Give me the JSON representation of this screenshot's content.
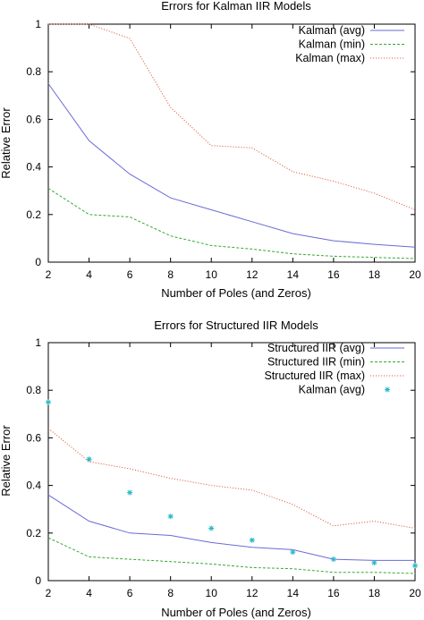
{
  "chart_data": [
    {
      "type": "line",
      "title": "Errors for Kalman IIR Models",
      "xlabel": "Number of Poles (and Zeros)",
      "ylabel": "Relative Error",
      "xlim": [
        2,
        20
      ],
      "ylim": [
        0,
        1
      ],
      "x_ticks": [
        2,
        4,
        6,
        8,
        10,
        12,
        14,
        16,
        18,
        20
      ],
      "x_tick_labels": [
        "2",
        "4",
        "6",
        "8",
        "10",
        "12",
        "14",
        "16",
        "18",
        "20"
      ],
      "y_ticks": [
        0,
        0.2,
        0.4,
        0.6,
        0.8,
        1
      ],
      "y_tick_labels": [
        "0",
        "0.2",
        "0.4",
        "0.6",
        "0.8",
        "1"
      ],
      "grid": false,
      "legend_position": "top-right",
      "x": [
        2,
        4,
        6,
        8,
        10,
        12,
        14,
        16,
        18,
        20
      ],
      "series": [
        {
          "name": "Kalman (avg)",
          "style": "solid",
          "marker": "none",
          "color": "#6a6ad8",
          "values": [
            0.75,
            0.51,
            0.37,
            0.27,
            0.22,
            0.17,
            0.12,
            0.09,
            0.075,
            0.063
          ]
        },
        {
          "name": "Kalman (min)",
          "style": "dashed",
          "marker": "none",
          "color": "#33aa33",
          "values": [
            0.31,
            0.2,
            0.19,
            0.11,
            0.07,
            0.055,
            0.035,
            0.025,
            0.02,
            0.015
          ]
        },
        {
          "name": "Kalman (max)",
          "style": "dotted",
          "marker": "none",
          "color": "#dd6644",
          "values": [
            1.0,
            1.0,
            0.94,
            0.65,
            0.49,
            0.48,
            0.38,
            0.34,
            0.29,
            0.22
          ]
        }
      ]
    },
    {
      "type": "line",
      "title": "Errors for Structured IIR Models",
      "xlabel": "Number of Poles (and Zeros)",
      "ylabel": "Relative Error",
      "xlim": [
        2,
        20
      ],
      "ylim": [
        0,
        1
      ],
      "x_ticks": [
        2,
        4,
        6,
        8,
        10,
        12,
        14,
        16,
        18,
        20
      ],
      "x_tick_labels": [
        "2",
        "4",
        "6",
        "8",
        "10",
        "12",
        "14",
        "16",
        "18",
        "20"
      ],
      "y_ticks": [
        0,
        0.2,
        0.4,
        0.6,
        0.8,
        1
      ],
      "y_tick_labels": [
        "0",
        "0.2",
        "0.4",
        "0.6",
        "0.8",
        "1"
      ],
      "grid": false,
      "legend_position": "top-right",
      "x": [
        2,
        4,
        6,
        8,
        10,
        12,
        14,
        16,
        18,
        20
      ],
      "series": [
        {
          "name": "Structured IIR (avg)",
          "style": "solid",
          "marker": "none",
          "color": "#6a6ad8",
          "values": [
            0.36,
            0.25,
            0.2,
            0.19,
            0.16,
            0.14,
            0.13,
            0.09,
            0.085,
            0.085
          ]
        },
        {
          "name": "Structured IIR (min)",
          "style": "dashed",
          "marker": "none",
          "color": "#33aa33",
          "values": [
            0.18,
            0.1,
            0.09,
            0.08,
            0.07,
            0.055,
            0.05,
            0.035,
            0.035,
            0.03
          ]
        },
        {
          "name": "Structured IIR (max)",
          "style": "dotted",
          "marker": "none",
          "color": "#dd6644",
          "values": [
            0.64,
            0.5,
            0.47,
            0.43,
            0.4,
            0.38,
            0.32,
            0.23,
            0.25,
            0.22
          ]
        },
        {
          "name": "Kalman (avg)",
          "style": "none",
          "marker": "asterisk",
          "color": "#22b8c8",
          "values": [
            0.75,
            0.51,
            0.37,
            0.27,
            0.22,
            0.17,
            0.12,
            0.09,
            0.075,
            0.063
          ]
        }
      ]
    }
  ]
}
